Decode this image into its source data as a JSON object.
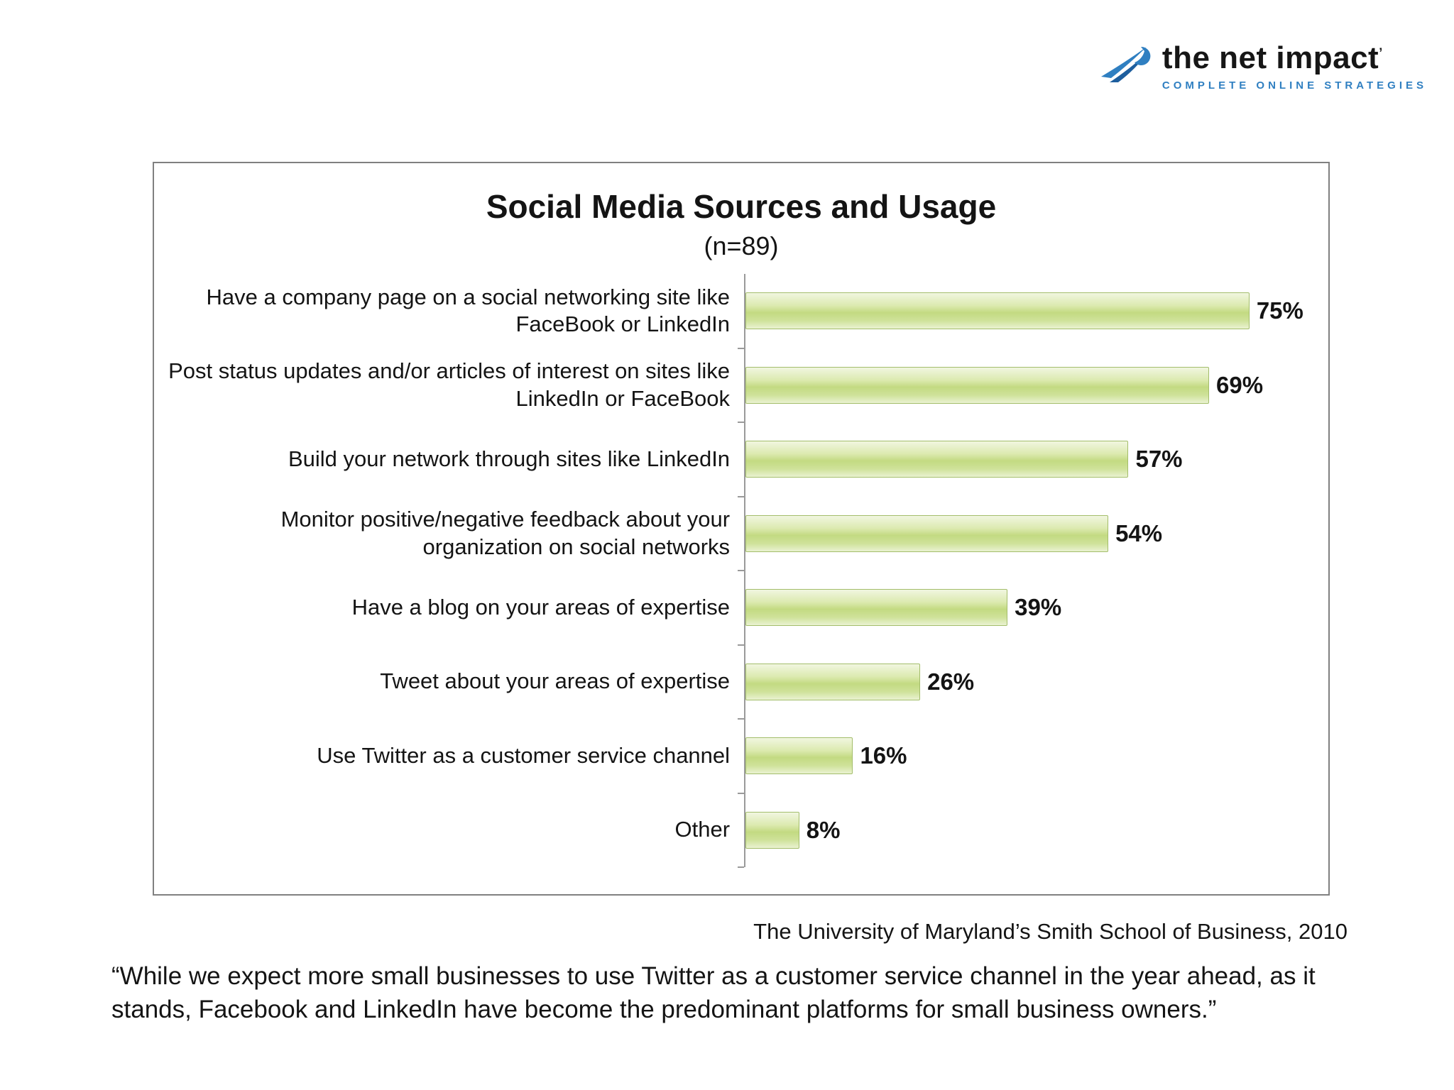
{
  "logo": {
    "name": "the net impact",
    "mark": "’",
    "tagline": "COMPLETE ONLINE STRATEGIES",
    "icon_color": "#2f7fc1"
  },
  "chart_data": {
    "type": "bar",
    "orientation": "horizontal",
    "title": "Social Media Sources and Usage",
    "subtitle": "(n=89)",
    "categories": [
      "Have a company page on a social networking site like FaceBook or LinkedIn",
      "Post status updates and/or articles of interest on sites like LinkedIn or FaceBook",
      "Build your network through sites like LinkedIn",
      "Monitor positive/negative feedback about your organization on social networks",
      "Have a blog on your areas of expertise",
      "Tweet about your areas of expertise",
      "Use Twitter as a customer service channel",
      "Other"
    ],
    "values": [
      75,
      69,
      57,
      54,
      39,
      26,
      16,
      8
    ],
    "value_labels": [
      "75%",
      "69%",
      "57%",
      "54%",
      "39%",
      "26%",
      "16%",
      "8%"
    ],
    "xlim": [
      0,
      84
    ],
    "grid": false,
    "legend": false,
    "bar_color": "#c3da82"
  },
  "attribution": "The University of Maryland’s Smith School of Business,  2010",
  "quote": "“While we expect more small businesses to use Twitter as a customer service channel in the year ahead, as it stands, Facebook and LinkedIn have become the predominant platforms for small business owners.”"
}
